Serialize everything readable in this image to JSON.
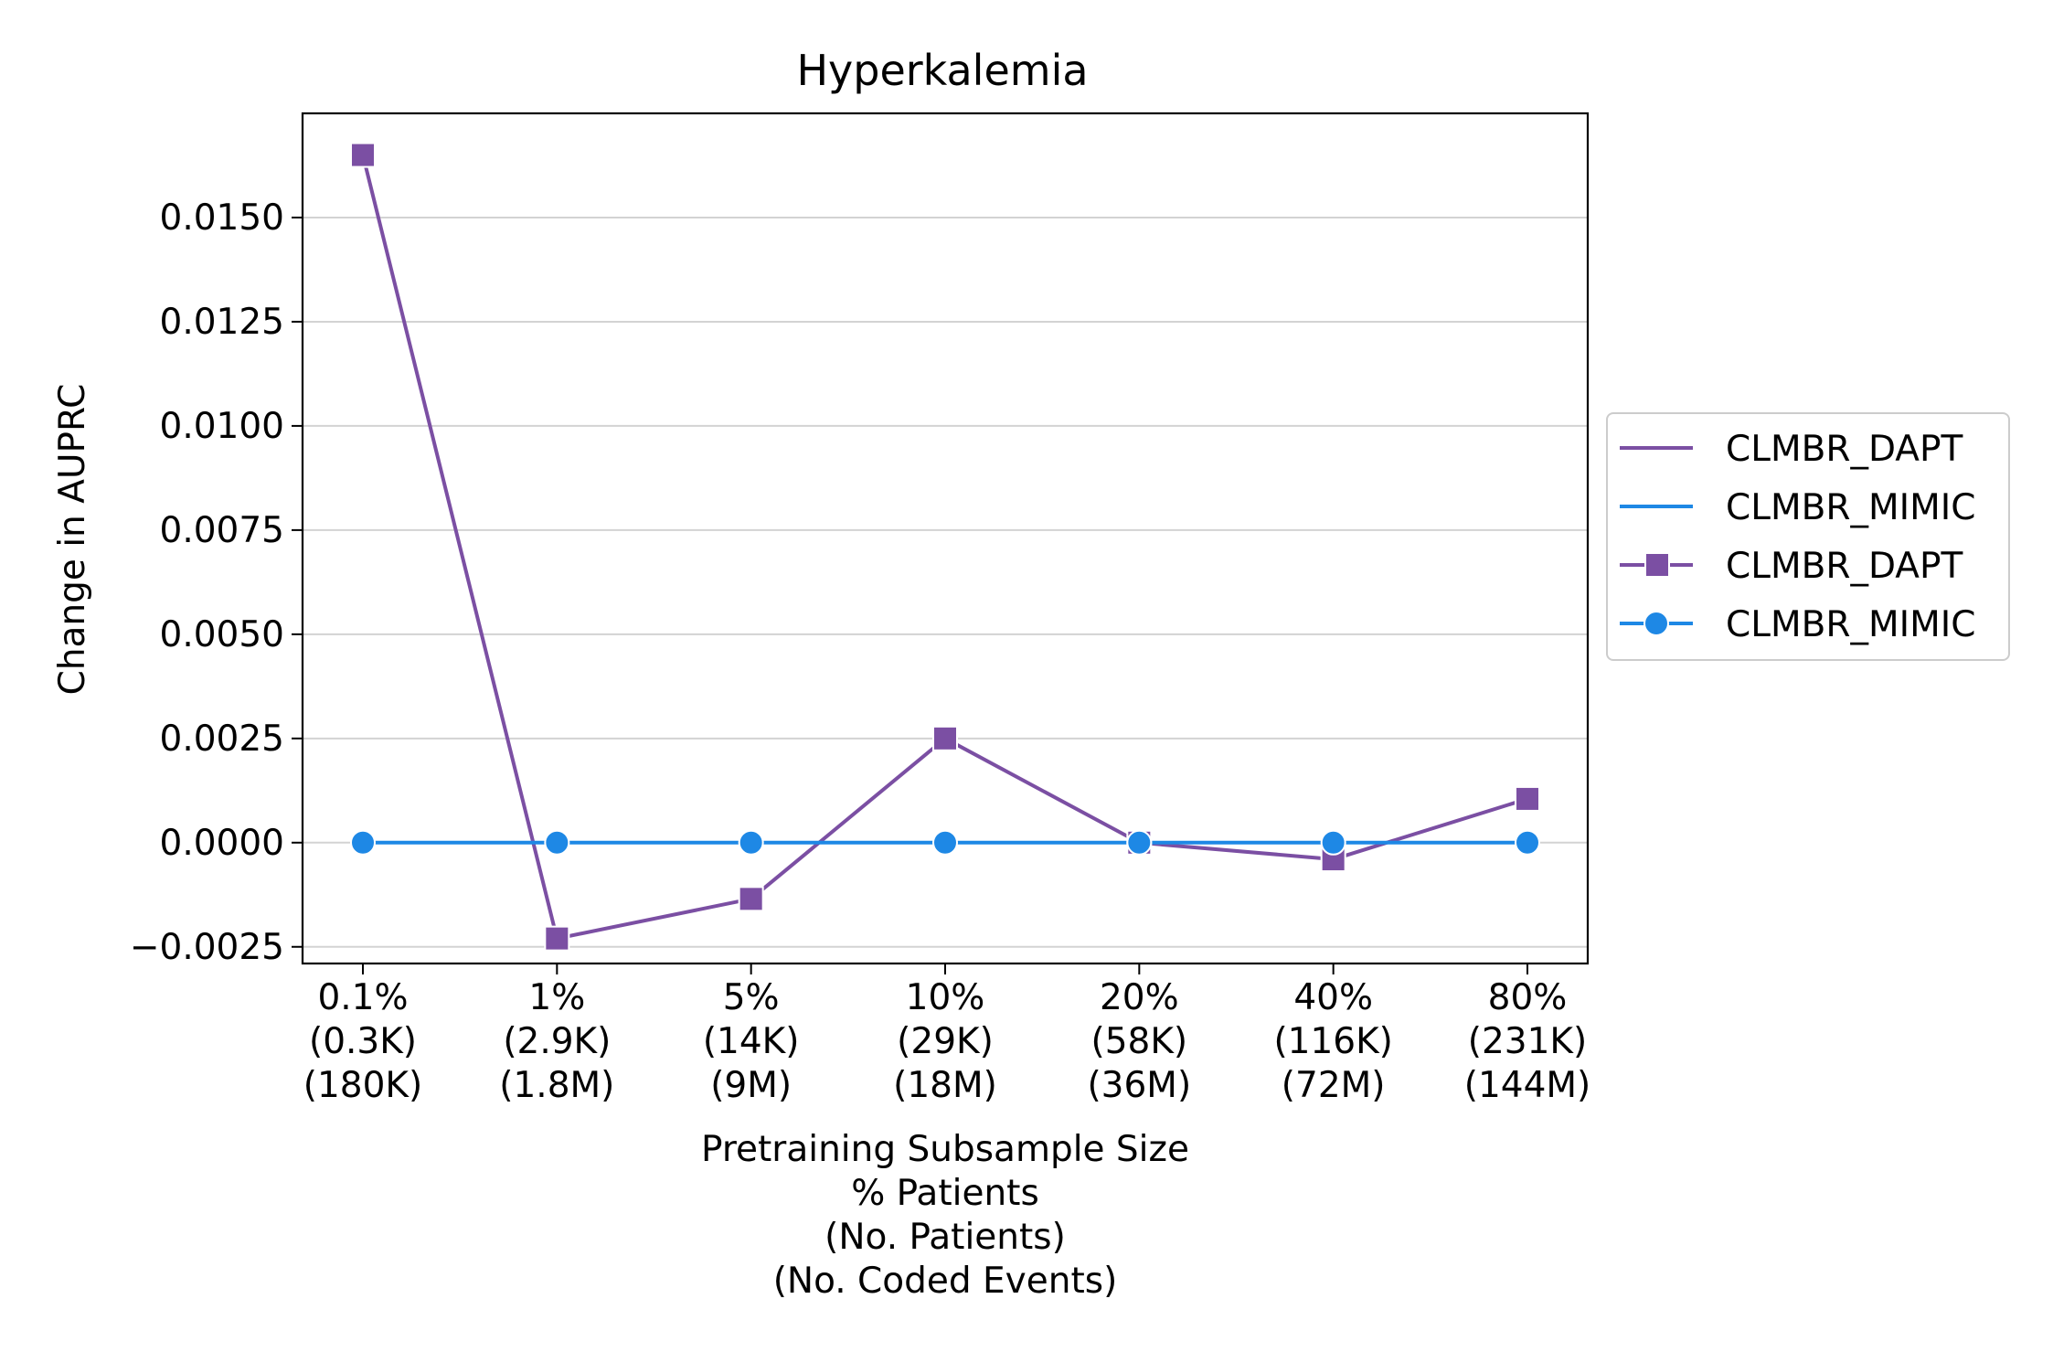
{
  "chart_data": {
    "type": "line",
    "title": "Hyperkalemia",
    "xlabel_lines": [
      "Pretraining Subsample Size",
      "% Patients",
      "(No. Patients)",
      "(No. Coded Events)"
    ],
    "ylabel": "Change in AUPRC",
    "categories": [
      [
        "0.1%",
        "(0.3K)",
        "(180K)"
      ],
      [
        "1%",
        "(2.9K)",
        "(1.8M)"
      ],
      [
        "5%",
        "(14K)",
        "(9M)"
      ],
      [
        "10%",
        "(29K)",
        "(18M)"
      ],
      [
        "20%",
        "(58K)",
        "(36M)"
      ],
      [
        "40%",
        "(116K)",
        "(72M)"
      ],
      [
        "80%",
        "(231K)",
        "(144M)"
      ]
    ],
    "ylim": [
      -0.0029,
      0.0175
    ],
    "yticks": [
      -0.0025,
      0.0,
      0.0025,
      0.005,
      0.0075,
      0.01,
      0.0125,
      0.015
    ],
    "ytick_labels": [
      "−0.0025",
      "0.0000",
      "0.0025",
      "0.0050",
      "0.0075",
      "0.0100",
      "0.0125",
      "0.0150"
    ],
    "grid": "horizontal",
    "legend_position": "right-outside",
    "series": [
      {
        "name": "CLMBR_DAPT",
        "color": "#7b4fa3",
        "marker": "square",
        "values": [
          0.0165,
          -0.0023,
          -0.00135,
          0.0025,
          0.0,
          -0.0004,
          0.00105
        ]
      },
      {
        "name": "CLMBR_MIMIC",
        "color": "#1e88e5",
        "marker": "circle",
        "values": [
          0.0,
          0.0,
          0.0,
          0.0,
          0.0,
          0.0,
          0.0
        ]
      }
    ],
    "legend": [
      {
        "label": "CLMBR_DAPT",
        "color": "#7b4fa3",
        "marker": "none"
      },
      {
        "label": "CLMBR_MIMIC",
        "color": "#1e88e5",
        "marker": "none"
      },
      {
        "label": "CLMBR_DAPT",
        "color": "#7b4fa3",
        "marker": "square"
      },
      {
        "label": "CLMBR_MIMIC",
        "color": "#1e88e5",
        "marker": "circle"
      }
    ]
  }
}
